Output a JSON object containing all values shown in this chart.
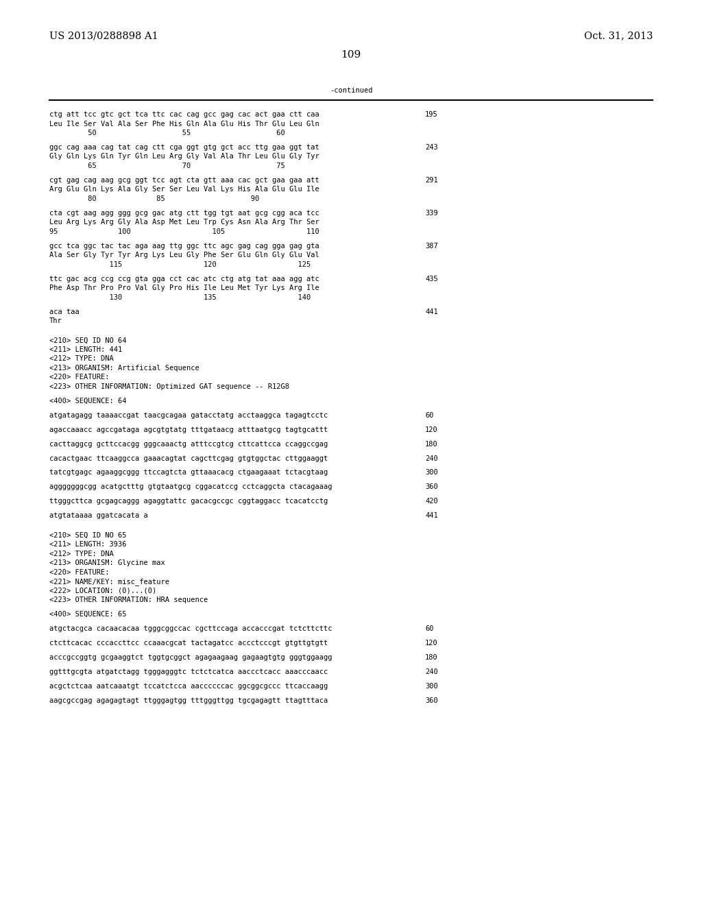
{
  "header_left": "US 2013/0288898 A1",
  "header_right": "Oct. 31, 2013",
  "page_number": "109",
  "continued_label": "-continued",
  "background_color": "#ffffff",
  "text_color": "#000000",
  "font_size": 7.5,
  "header_font_size": 10.5,
  "page_num_font_size": 11,
  "figsize": [
    10.24,
    13.2
  ],
  "dpi": 100,
  "content": [
    {
      "text": "ctg att tcc gtc gct tca ttc cac cag gcc gag cac act gaa ctt caa",
      "num": "195",
      "type": "seq"
    },
    {
      "text": "Leu Ile Ser Val Ala Ser Phe His Gln Ala Glu His Thr Glu Leu Gln",
      "num": "",
      "type": "aa"
    },
    {
      "text": "         50                    55                    60",
      "num": "",
      "type": "pos"
    },
    {
      "text": "",
      "num": "",
      "type": "blank"
    },
    {
      "text": "ggc cag aaa cag tat cag ctt cga ggt gtg gct acc ttg gaa ggt tat",
      "num": "243",
      "type": "seq"
    },
    {
      "text": "Gly Gln Lys Gln Tyr Gln Leu Arg Gly Val Ala Thr Leu Glu Gly Tyr",
      "num": "",
      "type": "aa"
    },
    {
      "text": "         65                    70                    75",
      "num": "",
      "type": "pos"
    },
    {
      "text": "",
      "num": "",
      "type": "blank"
    },
    {
      "text": "cgt gag cag aag gcg ggt tcc agt cta gtt aaa cac gct gaa gaa att",
      "num": "291",
      "type": "seq"
    },
    {
      "text": "Arg Glu Gln Lys Ala Gly Ser Ser Leu Val Lys His Ala Glu Glu Ile",
      "num": "",
      "type": "aa"
    },
    {
      "text": "         80              85                    90",
      "num": "",
      "type": "pos"
    },
    {
      "text": "",
      "num": "",
      "type": "blank"
    },
    {
      "text": "cta cgt aag agg ggg gcg gac atg ctt tgg tgt aat gcg cgg aca tcc",
      "num": "339",
      "type": "seq"
    },
    {
      "text": "Leu Arg Lys Arg Gly Ala Asp Met Leu Trp Cys Asn Ala Arg Thr Ser",
      "num": "",
      "type": "aa"
    },
    {
      "text": "95              100                   105                   110",
      "num": "",
      "type": "pos"
    },
    {
      "text": "",
      "num": "",
      "type": "blank"
    },
    {
      "text": "gcc tca ggc tac tac aga aag ttg ggc ttc agc gag cag gga gag gta",
      "num": "387",
      "type": "seq"
    },
    {
      "text": "Ala Ser Gly Tyr Tyr Arg Lys Leu Gly Phe Ser Glu Gln Gly Glu Val",
      "num": "",
      "type": "aa"
    },
    {
      "text": "              115                   120                   125",
      "num": "",
      "type": "pos"
    },
    {
      "text": "",
      "num": "",
      "type": "blank"
    },
    {
      "text": "ttc gac acg ccg ccg gta gga cct cac atc ctg atg tat aaa agg atc",
      "num": "435",
      "type": "seq"
    },
    {
      "text": "Phe Asp Thr Pro Pro Val Gly Pro His Ile Leu Met Tyr Lys Arg Ile",
      "num": "",
      "type": "aa"
    },
    {
      "text": "              130                   135                   140",
      "num": "",
      "type": "pos"
    },
    {
      "text": "",
      "num": "",
      "type": "blank"
    },
    {
      "text": "aca taa",
      "num": "441",
      "type": "seq"
    },
    {
      "text": "Thr",
      "num": "",
      "type": "aa"
    },
    {
      "text": "",
      "num": "",
      "type": "blank"
    },
    {
      "text": "",
      "num": "",
      "type": "blank"
    },
    {
      "text": "<210> SEQ ID NO 64",
      "num": "",
      "type": "meta"
    },
    {
      "text": "<211> LENGTH: 441",
      "num": "",
      "type": "meta"
    },
    {
      "text": "<212> TYPE: DNA",
      "num": "",
      "type": "meta"
    },
    {
      "text": "<213> ORGANISM: Artificial Sequence",
      "num": "",
      "type": "meta"
    },
    {
      "text": "<220> FEATURE:",
      "num": "",
      "type": "meta"
    },
    {
      "text": "<223> OTHER INFORMATION: Optimized GAT sequence -- R12G8",
      "num": "",
      "type": "meta"
    },
    {
      "text": "",
      "num": "",
      "type": "blank"
    },
    {
      "text": "<400> SEQUENCE: 64",
      "num": "",
      "type": "meta"
    },
    {
      "text": "",
      "num": "",
      "type": "blank"
    },
    {
      "text": "atgatagagg taaaaccgat taacgcagaa gatacctatg acctaaggca tagagtcctc",
      "num": "60",
      "type": "seq"
    },
    {
      "text": "",
      "num": "",
      "type": "blank"
    },
    {
      "text": "agaccaaacc agccgataga agcgtgtatg tttgataacg atttaatgcg tagtgcattt",
      "num": "120",
      "type": "seq"
    },
    {
      "text": "",
      "num": "",
      "type": "blank"
    },
    {
      "text": "cacttaggcg gcttccacgg gggcaaactg atttccgtcg cttcattcca ccaggccgag",
      "num": "180",
      "type": "seq"
    },
    {
      "text": "",
      "num": "",
      "type": "blank"
    },
    {
      "text": "cacactgaac ttcaaggcca gaaacagtat cagcttcgag gtgtggctac cttggaaggt",
      "num": "240",
      "type": "seq"
    },
    {
      "text": "",
      "num": "",
      "type": "blank"
    },
    {
      "text": "tatcgtgagc agaaggcggg ttccagtcta gttaaacacg ctgaagaaat tctacgtaag",
      "num": "300",
      "type": "seq"
    },
    {
      "text": "",
      "num": "",
      "type": "blank"
    },
    {
      "text": "agggggggcgg acatgctttg gtgtaatgcg cggacatccg cctcaggcta ctacagaaag",
      "num": "360",
      "type": "seq"
    },
    {
      "text": "",
      "num": "",
      "type": "blank"
    },
    {
      "text": "ttgggcttca gcgagcaggg agaggtattc gacacgccgc cggtaggacc tcacatcctg",
      "num": "420",
      "type": "seq"
    },
    {
      "text": "",
      "num": "",
      "type": "blank"
    },
    {
      "text": "atgtataaaa ggatcacata a",
      "num": "441",
      "type": "seq"
    },
    {
      "text": "",
      "num": "",
      "type": "blank"
    },
    {
      "text": "",
      "num": "",
      "type": "blank"
    },
    {
      "text": "<210> SEQ ID NO 65",
      "num": "",
      "type": "meta"
    },
    {
      "text": "<211> LENGTH: 3936",
      "num": "",
      "type": "meta"
    },
    {
      "text": "<212> TYPE: DNA",
      "num": "",
      "type": "meta"
    },
    {
      "text": "<213> ORGANISM: Glycine max",
      "num": "",
      "type": "meta"
    },
    {
      "text": "<220> FEATURE:",
      "num": "",
      "type": "meta"
    },
    {
      "text": "<221> NAME/KEY: misc_feature",
      "num": "",
      "type": "meta"
    },
    {
      "text": "<222> LOCATION: (0)...(0)",
      "num": "",
      "type": "meta"
    },
    {
      "text": "<223> OTHER INFORMATION: HRA sequence",
      "num": "",
      "type": "meta"
    },
    {
      "text": "",
      "num": "",
      "type": "blank"
    },
    {
      "text": "<400> SEQUENCE: 65",
      "num": "",
      "type": "meta"
    },
    {
      "text": "",
      "num": "",
      "type": "blank"
    },
    {
      "text": "atgctacgca cacaacacaa tgggcggccac cgcttccaga accacccgat tctcttcttc",
      "num": "60",
      "type": "seq"
    },
    {
      "text": "",
      "num": "",
      "type": "blank"
    },
    {
      "text": "ctcttcacac cccaccttcc ccaaacgcat tactagatcc accctcccgt gtgttgtgtt",
      "num": "120",
      "type": "seq"
    },
    {
      "text": "",
      "num": "",
      "type": "blank"
    },
    {
      "text": "acccgccggtg gcgaaggtct tggtgcggct agagaagaag gagaagtgtg gggtggaagg",
      "num": "180",
      "type": "seq"
    },
    {
      "text": "",
      "num": "",
      "type": "blank"
    },
    {
      "text": "ggtttgcgta atgatctagg tgggagggtc tctctcatca aaccctcacc aaacccaacc",
      "num": "240",
      "type": "seq"
    },
    {
      "text": "",
      "num": "",
      "type": "blank"
    },
    {
      "text": "acgctctcaa aatcaaatgt tccatctcca aaccccccac ggcggcgccc ttcaccaagg",
      "num": "300",
      "type": "seq"
    },
    {
      "text": "",
      "num": "",
      "type": "blank"
    },
    {
      "text": "aagcgccgag agagagtagt ttgggagtgg tttgggttgg tgcgagagtt ttagtttaca",
      "num": "360",
      "type": "seq"
    }
  ]
}
